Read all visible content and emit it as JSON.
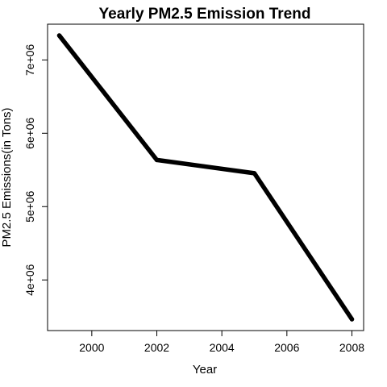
{
  "chart_data": {
    "type": "line",
    "title": "Yearly PM2.5 Emission Trend",
    "xlabel": "Year",
    "ylabel": "PM2.5 Emissions(in Tons)",
    "x": [
      1999,
      2002,
      2005,
      2008
    ],
    "series": [
      {
        "values": [
          7332967,
          5635780,
          5454703,
          3464206
        ]
      }
    ],
    "xlim": [
      1998.64,
      2008.36
    ],
    "ylim": [
      3309816,
      7487357
    ],
    "xticks": [
      2000,
      2002,
      2004,
      2006,
      2008
    ],
    "xtick_labels": [
      "2000",
      "2002",
      "2004",
      "2006",
      "2008"
    ],
    "yticks": [
      4000000,
      5000000,
      6000000,
      7000000
    ],
    "ytick_labels": [
      "4e+06",
      "5e+06",
      "6e+06",
      "7e+06"
    ],
    "grid": false,
    "line_color": "#000000"
  }
}
